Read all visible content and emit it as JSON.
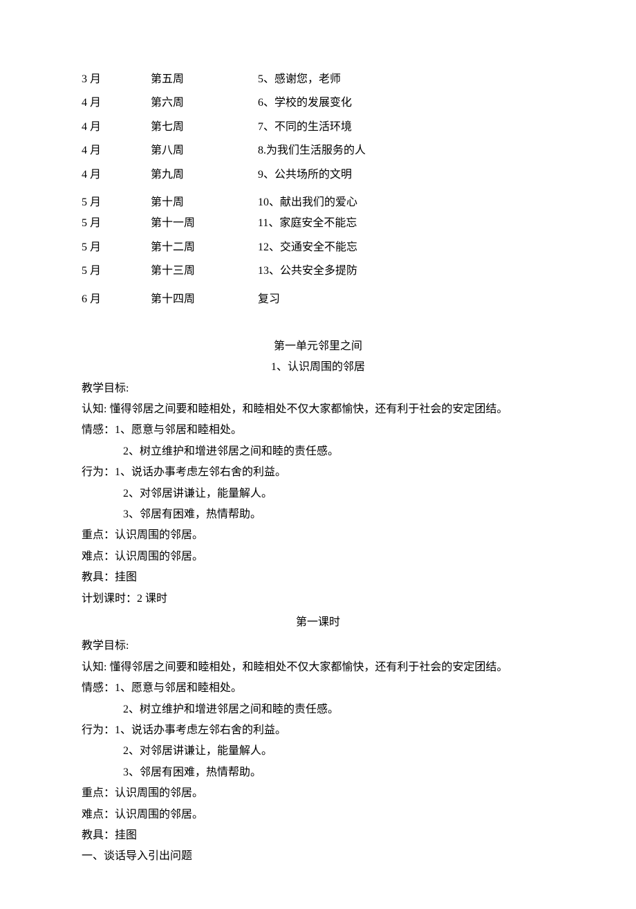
{
  "schedule": [
    {
      "month": "3 月",
      "week": "第五周",
      "topic": "5、感谢您，老师"
    },
    {
      "month": "4 月",
      "week": "第六周",
      "topic": "6、学校的发展变化"
    },
    {
      "month": "4 月",
      "week": "第七周",
      "topic": "7、不同的生活环境"
    },
    {
      "month": "4 月",
      "week": "第八周",
      "topic": "8.为我们生活服务的人"
    },
    {
      "month": "4 月",
      "week": "第九周",
      "topic": "9、公共场所的文明"
    },
    {
      "month": "5 月",
      "week": "第十周",
      "topic": "10、献出我们的爱心"
    },
    {
      "month": "5 月",
      "week": "第十一周",
      "topic": "11、家庭安全不能忘"
    },
    {
      "month": "5 月",
      "week": "第十二周",
      "topic": "12、交通安全不能忘"
    },
    {
      "month": "5 月",
      "week": "第十三周",
      "topic": "13、公共安全多提防"
    },
    {
      "month": "6 月",
      "week": "第十四周",
      "topic": "复习"
    }
  ],
  "unit": {
    "title": "第一单元邻里之间",
    "lesson_number_title": "1、认识周围的邻居"
  },
  "section1": {
    "goal_label": "教学目标:",
    "renzhi": "认知: 懂得邻居之间要和睦相处，和睦相处不仅大家都愉快，还有利于社会的安定团结。",
    "qinggan_label": "情感：1、愿意与邻居和睦相处。",
    "qinggan_2": "2、树立维护和增进邻居之间和睦的责任感。",
    "xingwei_label": "行为：1、说话办事考虑左邻右舍的利益。",
    "xingwei_2": "2、对邻居讲谦让，能量解人。",
    "xingwei_3": "3、邻居有困难，热情帮助。",
    "zhongdian": "重点：认识周围的邻居。",
    "nandian": "难点：认识周围的邻居。",
    "jiaoju": "教具：挂图",
    "keshi": "计划课时：2 课时"
  },
  "lesson1_title": "第一课时",
  "section2": {
    "goal_label": "教学目标:",
    "renzhi": "认知: 懂得邻居之间要和睦相处，和睦相处不仅大家都愉快，还有利于社会的安定团结。",
    "qinggan_label": "情感：1、愿意与邻居和睦相处。",
    "qinggan_2": "2、树立维护和增进邻居之间和睦的责任感。",
    "xingwei_label": "行为：1、说话办事考虑左邻右舍的利益。",
    "xingwei_2": "2、对邻居讲谦让，能量解人。",
    "xingwei_3": "3、邻居有困难，热情帮助。",
    "zhongdian": "重点：认识周围的邻居。",
    "nandian": "难点：认识周围的邻居。",
    "jiaoju": "教具：挂图",
    "intro": "一、谈话导入引出问题"
  }
}
